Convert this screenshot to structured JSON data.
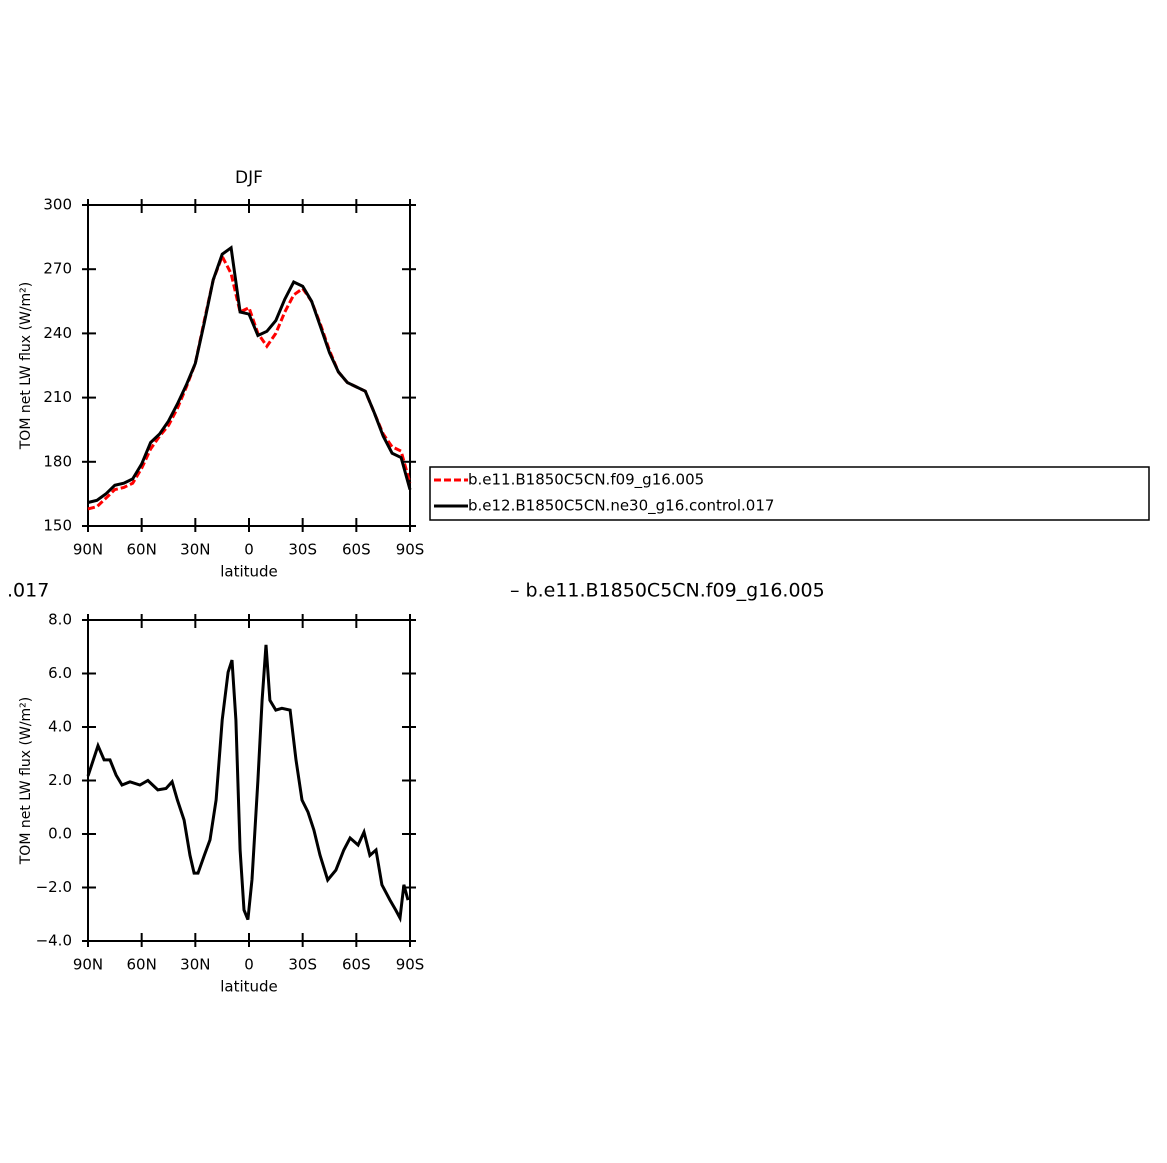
{
  "chart_data": [
    {
      "type": "line",
      "title": "DJF",
      "xlabel": "latitude",
      "ylabel": "TOM net LW flux (W/m²)",
      "x": [
        90,
        85,
        80,
        75,
        70,
        65,
        60,
        55,
        50,
        45,
        40,
        35,
        30,
        25,
        20,
        15,
        10,
        5,
        0,
        -5,
        -10,
        -15,
        -20,
        -25,
        -30,
        -35,
        -40,
        -45,
        -50,
        -55,
        -60,
        -65,
        -70,
        -75,
        -80,
        -85,
        -90
      ],
      "series": [
        {
          "name": "b.e11.B1850C5CN.f09_g16.005",
          "color": "#ff0000",
          "dash": true,
          "values": [
            158,
            159,
            163,
            167,
            168,
            170,
            177,
            186,
            192,
            197,
            205,
            215,
            226,
            246,
            265,
            276,
            268,
            250,
            252,
            240,
            234,
            240,
            250,
            258,
            261,
            255,
            244,
            232,
            222,
            217,
            215,
            213,
            203,
            193,
            187,
            185,
            170
          ]
        },
        {
          "name": "b.e12.B1850C5CN.ne30_g16.control.017",
          "color": "#000000",
          "dash": false,
          "values": [
            161,
            162,
            165,
            169,
            170,
            172,
            179,
            189,
            193,
            199,
            207,
            216,
            226,
            245,
            265,
            277,
            280,
            250,
            249,
            239,
            241,
            246,
            256,
            264,
            262,
            255,
            243,
            231,
            222,
            217,
            215,
            213,
            203,
            192,
            184,
            182,
            167
          ]
        }
      ],
      "xlim": [
        90,
        -90
      ],
      "xticks": [
        {
          "value": 90,
          "label": "90N"
        },
        {
          "value": 60,
          "label": "60N"
        },
        {
          "value": 30,
          "label": "30N"
        },
        0,
        {
          "value": -30,
          "label": "30S"
        },
        {
          "value": -60,
          "label": "60S"
        },
        {
          "value": -90,
          "label": "90S"
        }
      ],
      "ylim": [
        150,
        300
      ],
      "yticks": [
        150,
        180,
        210,
        240,
        270,
        300
      ],
      "legend_position": "right"
    },
    {
      "type": "line",
      "xlabel": "latitude",
      "ylabel": "TOM net LW flux (W/m²)",
      "subtitle_left": ".017",
      "subtitle_right": "– b.e11.B1850C5CN.f09_g16.005",
      "x": [
        90,
        84.4,
        81,
        77.7,
        74.3,
        71,
        66.5,
        61,
        56.5,
        51,
        46.4,
        43,
        40,
        36.3,
        33,
        30.7,
        28.5,
        25,
        21.8,
        18.4,
        15,
        11.7,
        9.5,
        7.3,
        5,
        2.8,
        0.6,
        -1.7,
        -5,
        -7.3,
        -9.5,
        -11.7,
        -15,
        -18.4,
        -23,
        -26.3,
        -29.6,
        -33,
        -36.3,
        -39.7,
        -44,
        -48.6,
        -53,
        -56.5,
        -61,
        -64.3,
        -67.6,
        -71,
        -74.3,
        -78.8,
        -82,
        -84.4,
        -86.6,
        -88.9
      ],
      "series": [
        {
          "color": "#000000",
          "dash": false,
          "values": [
            2.17,
            3.3,
            2.77,
            2.77,
            2.2,
            1.83,
            1.95,
            1.83,
            2.0,
            1.65,
            1.7,
            1.95,
            1.27,
            0.52,
            -0.8,
            -1.46,
            -1.46,
            -0.8,
            -0.22,
            1.27,
            4.26,
            6.05,
            6.5,
            4.26,
            -0.6,
            -2.84,
            -3.2,
            -1.7,
            2.0,
            5.0,
            7.07,
            5.0,
            4.63,
            4.7,
            4.63,
            2.77,
            1.27,
            0.82,
            0.15,
            -0.79,
            -1.72,
            -1.35,
            -0.6,
            -0.15,
            -0.41,
            0.07,
            -0.8,
            -0.6,
            -1.9,
            -2.47,
            -2.84,
            -3.14,
            -1.9,
            -2.47
          ]
        }
      ],
      "xlim": [
        90,
        -90
      ],
      "xticks": [
        {
          "value": 90,
          "label": "90N"
        },
        {
          "value": 60,
          "label": "60N"
        },
        {
          "value": 30,
          "label": "30N"
        },
        0,
        {
          "value": -30,
          "label": "30S"
        },
        {
          "value": -60,
          "label": "60S"
        },
        {
          "value": -90,
          "label": "90S"
        }
      ],
      "ylim": [
        -4,
        8
      ],
      "yticks": [
        {
          "value": -4,
          "label": "−4.0"
        },
        {
          "value": -2,
          "label": "−2.0"
        },
        {
          "value": 0,
          "label": "0.0"
        },
        {
          "value": 2,
          "label": "2.0"
        },
        {
          "value": 4,
          "label": "4.0"
        },
        {
          "value": 6,
          "label": "6.0"
        },
        {
          "value": 8,
          "label": "8.0"
        }
      ]
    }
  ]
}
